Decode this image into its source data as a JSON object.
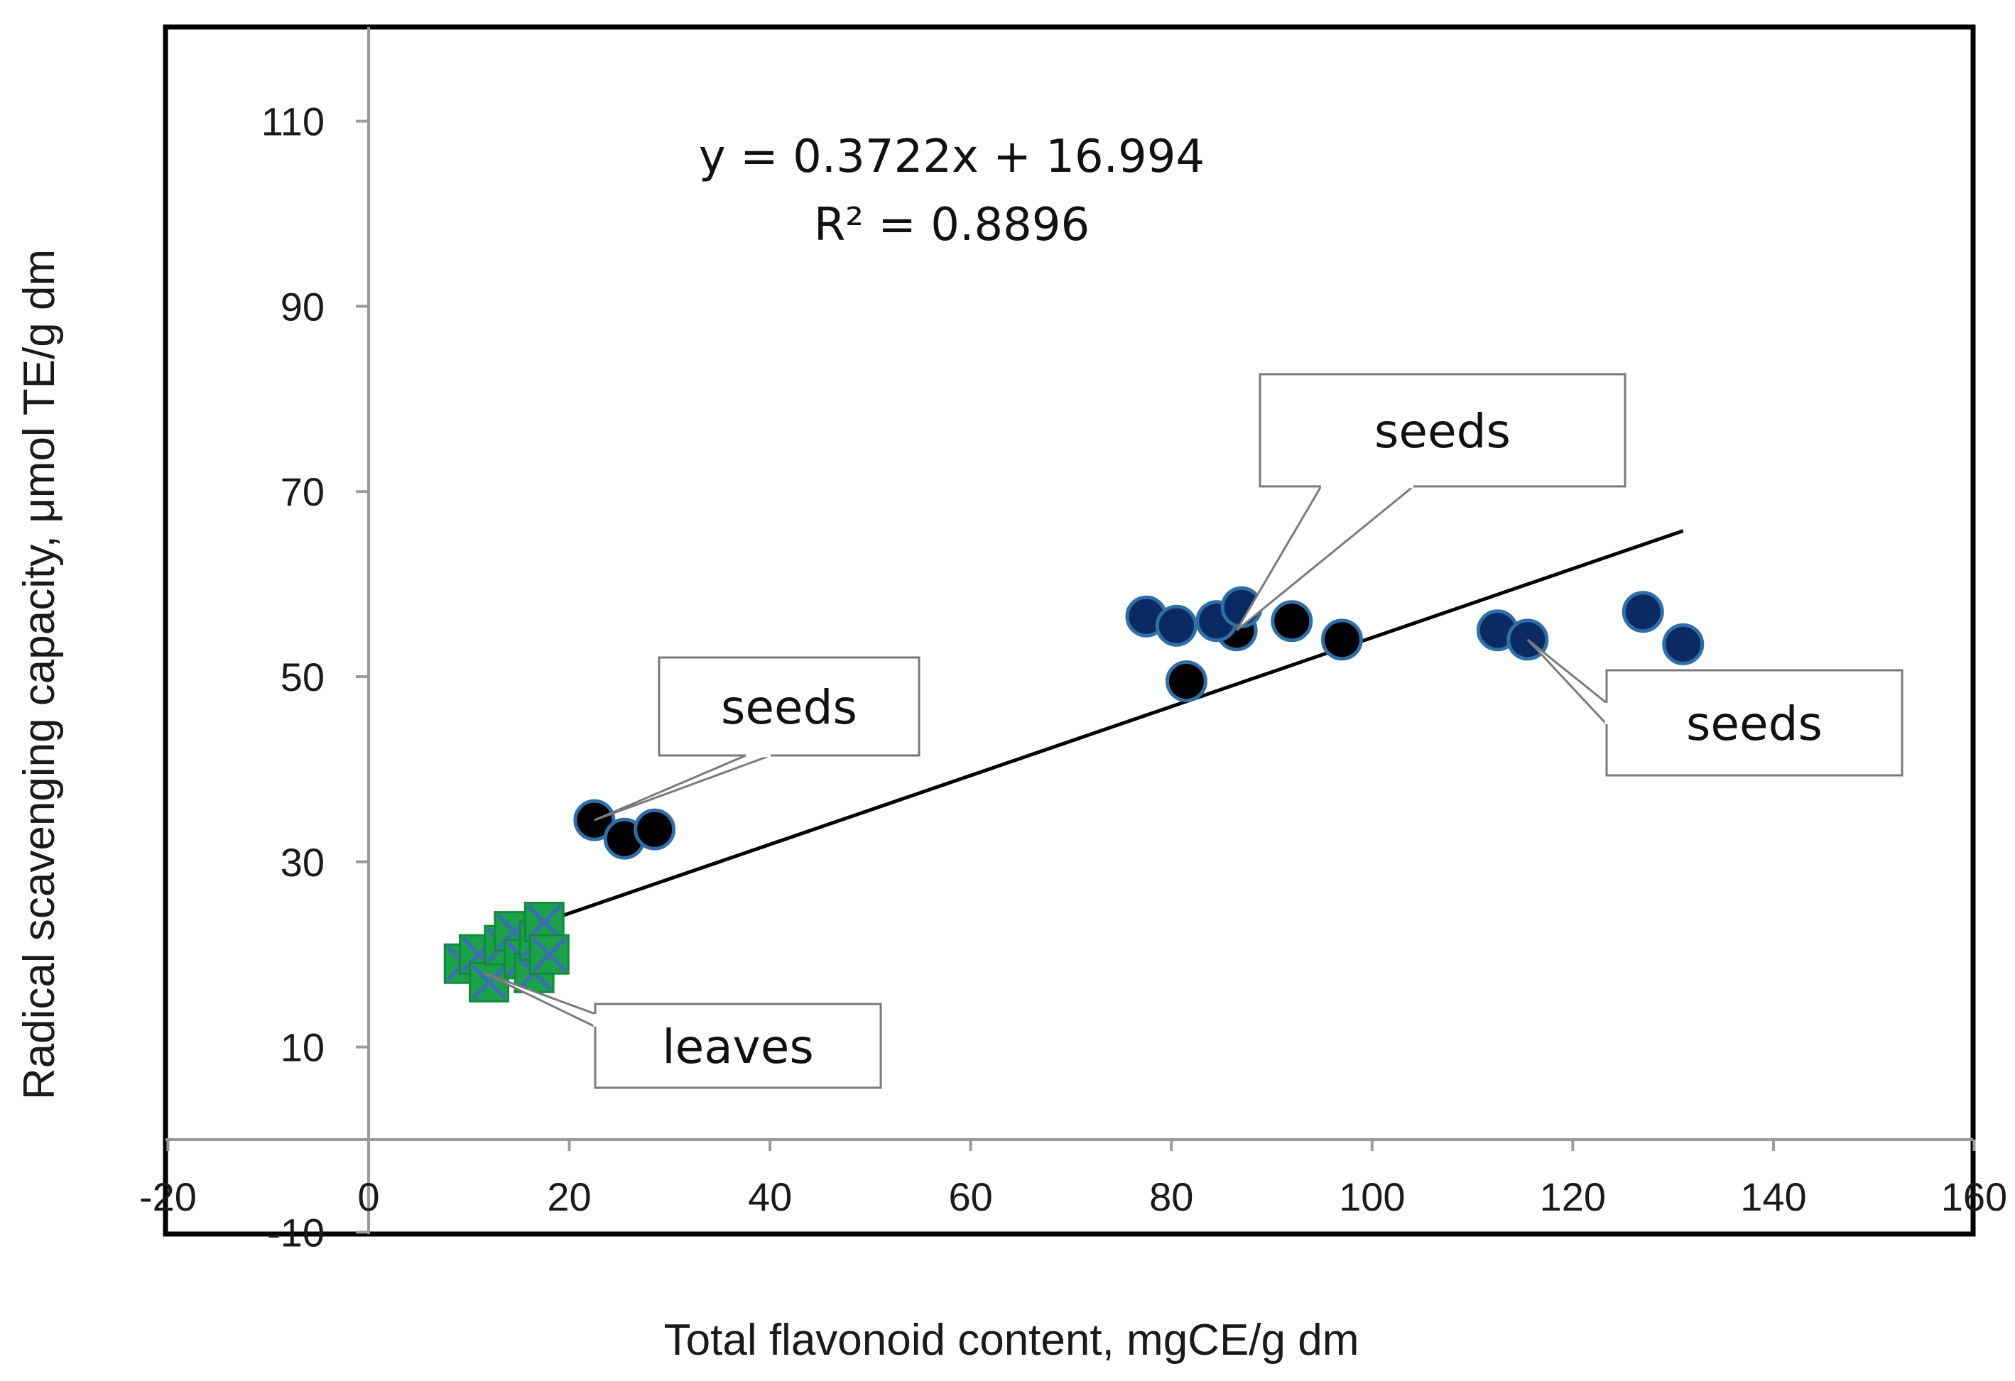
{
  "chart_data": {
    "type": "scatter",
    "xlabel": "Total flavonoid content, mgCE/g dm",
    "ylabel": "Radical scavenging capacity, μmol TE/g dm",
    "xlim": [
      -20,
      160
    ],
    "ylim": [
      -10,
      120
    ],
    "x_ticks": [
      -20,
      0,
      20,
      40,
      60,
      80,
      100,
      120,
      140,
      160
    ],
    "y_ticks": [
      -10,
      10,
      30,
      50,
      70,
      90,
      110
    ],
    "grid": false,
    "series": [
      {
        "name": "seeds (black)",
        "color": "#000000",
        "marker": "circle",
        "points": [
          [
            22.5,
            34.5
          ],
          [
            25.5,
            32.5
          ],
          [
            28.5,
            33.5
          ],
          [
            81.5,
            49.5
          ],
          [
            86.5,
            55.0
          ],
          [
            92.0,
            56.0
          ],
          [
            97.0,
            54.0
          ]
        ]
      },
      {
        "name": "seeds (navy)",
        "color": "#0b2a63",
        "marker": "circle",
        "points": [
          [
            77.5,
            56.5
          ],
          [
            80.5,
            55.5
          ],
          [
            84.5,
            56.0
          ],
          [
            87.0,
            57.5
          ],
          [
            112.5,
            55.0
          ],
          [
            115.5,
            54.0
          ],
          [
            127.0,
            57.0
          ],
          [
            131.0,
            53.5
          ]
        ]
      },
      {
        "name": "leaves",
        "color": "#1aa14a",
        "marker": "x-square",
        "points": [
          [
            9.5,
            19.0
          ],
          [
            11.0,
            20.0
          ],
          [
            12.0,
            17.0
          ],
          [
            13.5,
            21.0
          ],
          [
            14.5,
            22.5
          ],
          [
            15.5,
            19.5
          ],
          [
            16.5,
            18.0
          ],
          [
            17.0,
            21.5
          ],
          [
            17.5,
            23.5
          ],
          [
            18.0,
            20.0
          ]
        ]
      }
    ],
    "trendline": {
      "slope": 0.3722,
      "intercept": 16.994,
      "x_range": [
        9.5,
        131.0
      ],
      "equation": "y = 0.3722x + 16.994",
      "r2": "R² = 0.8896"
    },
    "annotations": [
      {
        "text": "seeds",
        "target": [
          22.5,
          34.5
        ]
      },
      {
        "text": "seeds",
        "target": [
          86.5,
          55.0
        ]
      },
      {
        "text": "seeds",
        "target": [
          115.5,
          54.0
        ]
      },
      {
        "text": "leaves",
        "target": [
          11.5,
          18.0
        ]
      }
    ]
  }
}
